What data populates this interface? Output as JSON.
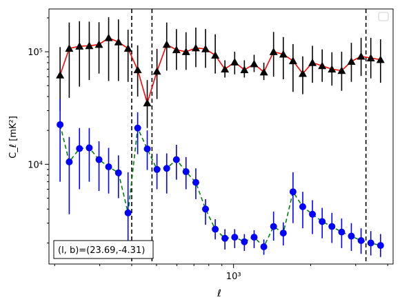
{
  "chart_data": {
    "type": "scatter",
    "title": "",
    "xlabel": "ℓ",
    "ylabel": "C_ℓ  [mK²]",
    "xscale": "log",
    "yscale": "log",
    "xlim": [
      190,
      4200
    ],
    "ylim": [
      1300,
      240000
    ],
    "xticks": [
      {
        "value": 1000,
        "label": "10³"
      }
    ],
    "yticks": [
      {
        "value": 10000,
        "label": "10⁴"
      },
      {
        "value": 100000,
        "label": "10⁵"
      }
    ],
    "grid": false,
    "legend": {
      "placement": "top-right",
      "entries": []
    },
    "annotation": "(l, b)=(23.69,-4.31)",
    "vlines": [
      {
        "x": 400,
        "style": "dashed"
      },
      {
        "x": 480,
        "style": "dashed"
      },
      {
        "x": 3290,
        "style": "dashed"
      }
    ],
    "series": [
      {
        "marker": "triangle",
        "marker_color": "#000000",
        "line_color": "#ff0000",
        "line_style": "solid",
        "errorbar_color": "#000000",
        "x": [
          210,
          228,
          250,
          273,
          298,
          325,
          355,
          387,
          422,
          460,
          502,
          548,
          598,
          652,
          712,
          777,
          848,
          925,
          1010,
          1102,
          1203,
          1313,
          1433,
          1564,
          1707,
          1863,
          2033,
          2219,
          2422,
          2644,
          2885,
          3149,
          3437,
          3751
        ],
        "y": [
          62000,
          107000,
          112000,
          113000,
          116000,
          133000,
          122000,
          107000,
          69000,
          35000,
          67000,
          116000,
          104000,
          100000,
          108000,
          106000,
          93000,
          70000,
          81000,
          69000,
          78000,
          66000,
          100000,
          95000,
          83000,
          64000,
          80000,
          75000,
          70000,
          68000,
          82000,
          91000,
          88000,
          85000
        ],
        "yerr_low": [
          32000,
          68000,
          63000,
          57000,
          52000,
          78000,
          67000,
          53000,
          29000,
          14000,
          29000,
          48000,
          35000,
          31000,
          35000,
          34000,
          29000,
          11000,
          18000,
          10000,
          12000,
          10000,
          40000,
          38000,
          39000,
          22000,
          27000,
          21000,
          20000,
          23000,
          28000,
          30000,
          30000,
          32000
        ],
        "yerr_high": [
          48000,
          75000,
          75000,
          72000,
          67000,
          70000,
          72000,
          50000,
          45000,
          21000,
          39000,
          66000,
          55000,
          49000,
          56000,
          53000,
          50000,
          14000,
          19000,
          15000,
          16000,
          14000,
          50000,
          40000,
          34000,
          27000,
          33000,
          30000,
          29000,
          32000,
          38000,
          42000,
          45000,
          44000
        ]
      },
      {
        "marker": "circle",
        "marker_color": "#0000ff",
        "line_color": "#008000",
        "line_style": "dashed",
        "errorbar_color": "#0000ff",
        "x": [
          210,
          228,
          250,
          273,
          298,
          325,
          355,
          387,
          422,
          460,
          502,
          548,
          598,
          652,
          712,
          777,
          848,
          925,
          1010,
          1102,
          1203,
          1313,
          1433,
          1564,
          1707,
          1863,
          2033,
          2219,
          2422,
          2644,
          2885,
          3149,
          3437,
          3751
        ],
        "y": [
          22500,
          10500,
          13800,
          14000,
          11000,
          9500,
          8400,
          3700,
          21000,
          13700,
          9000,
          9200,
          11000,
          8600,
          6900,
          4000,
          2650,
          2200,
          2250,
          2050,
          2250,
          1850,
          2800,
          2450,
          5700,
          4200,
          3600,
          3100,
          2800,
          2500,
          2300,
          2100,
          2000,
          1900
        ],
        "yerr_low": [
          15500,
          6900,
          7800,
          7000,
          5200,
          4000,
          3400,
          1600,
          8700,
          4800,
          3000,
          3700,
          3700,
          2600,
          2000,
          1100,
          500,
          450,
          450,
          350,
          450,
          280,
          700,
          550,
          2700,
          1500,
          1200,
          900,
          800,
          700,
          600,
          500,
          450,
          400
        ],
        "yerr_high": [
          16000,
          7000,
          7200,
          7000,
          5000,
          4500,
          3600,
          4800,
          8000,
          6300,
          3400,
          3300,
          3900,
          3000,
          2300,
          900,
          600,
          450,
          400,
          350,
          350,
          300,
          1000,
          600,
          2800,
          1500,
          1200,
          1000,
          900,
          800,
          700,
          600,
          550,
          500
        ]
      }
    ]
  }
}
